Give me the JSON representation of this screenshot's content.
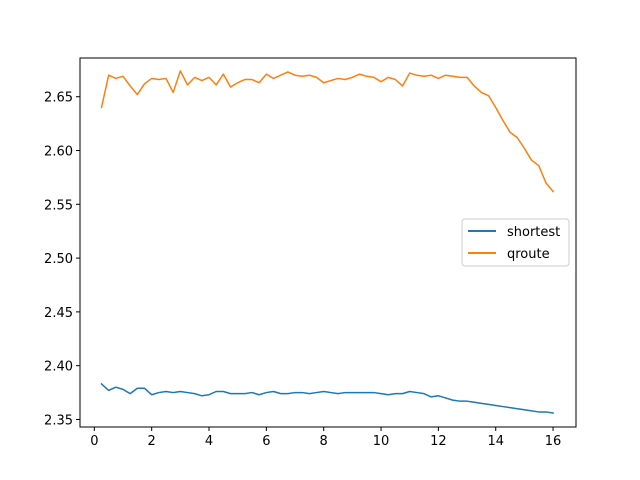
{
  "chart_data": {
    "type": "line",
    "title": "",
    "xlabel": "",
    "ylabel": "",
    "xlim": [
      -0.5,
      16.8
    ],
    "ylim": [
      2.343,
      2.686
    ],
    "grid": false,
    "legend_position": "center-right",
    "x_ticks": [
      {
        "value": 0,
        "label": "0"
      },
      {
        "value": 2,
        "label": "2"
      },
      {
        "value": 4,
        "label": "4"
      },
      {
        "value": 6,
        "label": "6"
      },
      {
        "value": 8,
        "label": "8"
      },
      {
        "value": 10,
        "label": "10"
      },
      {
        "value": 12,
        "label": "12"
      },
      {
        "value": 14,
        "label": "14"
      },
      {
        "value": 16,
        "label": "16"
      }
    ],
    "y_ticks": [
      {
        "value": 2.35,
        "label": "2.35"
      },
      {
        "value": 2.4,
        "label": "2.40"
      },
      {
        "value": 2.45,
        "label": "2.45"
      },
      {
        "value": 2.5,
        "label": "2.50"
      },
      {
        "value": 2.55,
        "label": "2.55"
      },
      {
        "value": 2.6,
        "label": "2.60"
      },
      {
        "value": 2.65,
        "label": "2.65"
      }
    ],
    "x": [
      0.25,
      0.5,
      0.75,
      1.0,
      1.25,
      1.5,
      1.75,
      2.0,
      2.25,
      2.5,
      2.75,
      3.0,
      3.25,
      3.5,
      3.75,
      4.0,
      4.25,
      4.5,
      4.75,
      5.0,
      5.25,
      5.5,
      5.75,
      6.0,
      6.25,
      6.5,
      6.75,
      7.0,
      7.25,
      7.5,
      7.75,
      8.0,
      8.25,
      8.5,
      8.75,
      9.0,
      9.25,
      9.5,
      9.75,
      10.0,
      10.25,
      10.5,
      10.75,
      11.0,
      11.25,
      11.5,
      11.75,
      12.0,
      12.25,
      12.5,
      12.75,
      13.0,
      13.25,
      13.5,
      13.75,
      14.0,
      14.25,
      14.5,
      14.75,
      15.0,
      15.25,
      15.5,
      15.75,
      16.0
    ],
    "series": [
      {
        "name": "shortest",
        "color": "#1f77b4",
        "values": [
          2.383,
          2.377,
          2.38,
          2.378,
          2.374,
          2.379,
          2.379,
          2.373,
          2.375,
          2.376,
          2.375,
          2.376,
          2.375,
          2.374,
          2.372,
          2.373,
          2.376,
          2.376,
          2.374,
          2.374,
          2.374,
          2.375,
          2.373,
          2.375,
          2.376,
          2.374,
          2.374,
          2.375,
          2.375,
          2.374,
          2.375,
          2.376,
          2.375,
          2.374,
          2.375,
          2.375,
          2.375,
          2.375,
          2.375,
          2.374,
          2.373,
          2.374,
          2.374,
          2.376,
          2.375,
          2.374,
          2.371,
          2.372,
          2.37,
          2.368,
          2.367,
          2.367,
          2.366,
          2.365,
          2.364,
          2.363,
          2.362,
          2.361,
          2.36,
          2.359,
          2.358,
          2.357,
          2.357,
          2.356
        ]
      },
      {
        "name": "qroute",
        "color": "#ff7f0e",
        "values": [
          2.64,
          2.67,
          2.667,
          2.669,
          2.66,
          2.652,
          2.662,
          2.667,
          2.666,
          2.667,
          2.654,
          2.674,
          2.661,
          2.668,
          2.665,
          2.668,
          2.661,
          2.671,
          2.659,
          2.663,
          2.666,
          2.666,
          2.663,
          2.671,
          2.667,
          2.67,
          2.673,
          2.67,
          2.669,
          2.67,
          2.668,
          2.663,
          2.665,
          2.667,
          2.666,
          2.668,
          2.671,
          2.669,
          2.668,
          2.664,
          2.668,
          2.666,
          2.66,
          2.672,
          2.67,
          2.669,
          2.67,
          2.667,
          2.67,
          2.669,
          2.668,
          2.668,
          2.66,
          2.654,
          2.651,
          2.64,
          2.628,
          2.617,
          2.612,
          2.602,
          2.591,
          2.586,
          2.57,
          2.562
        ]
      }
    ]
  }
}
